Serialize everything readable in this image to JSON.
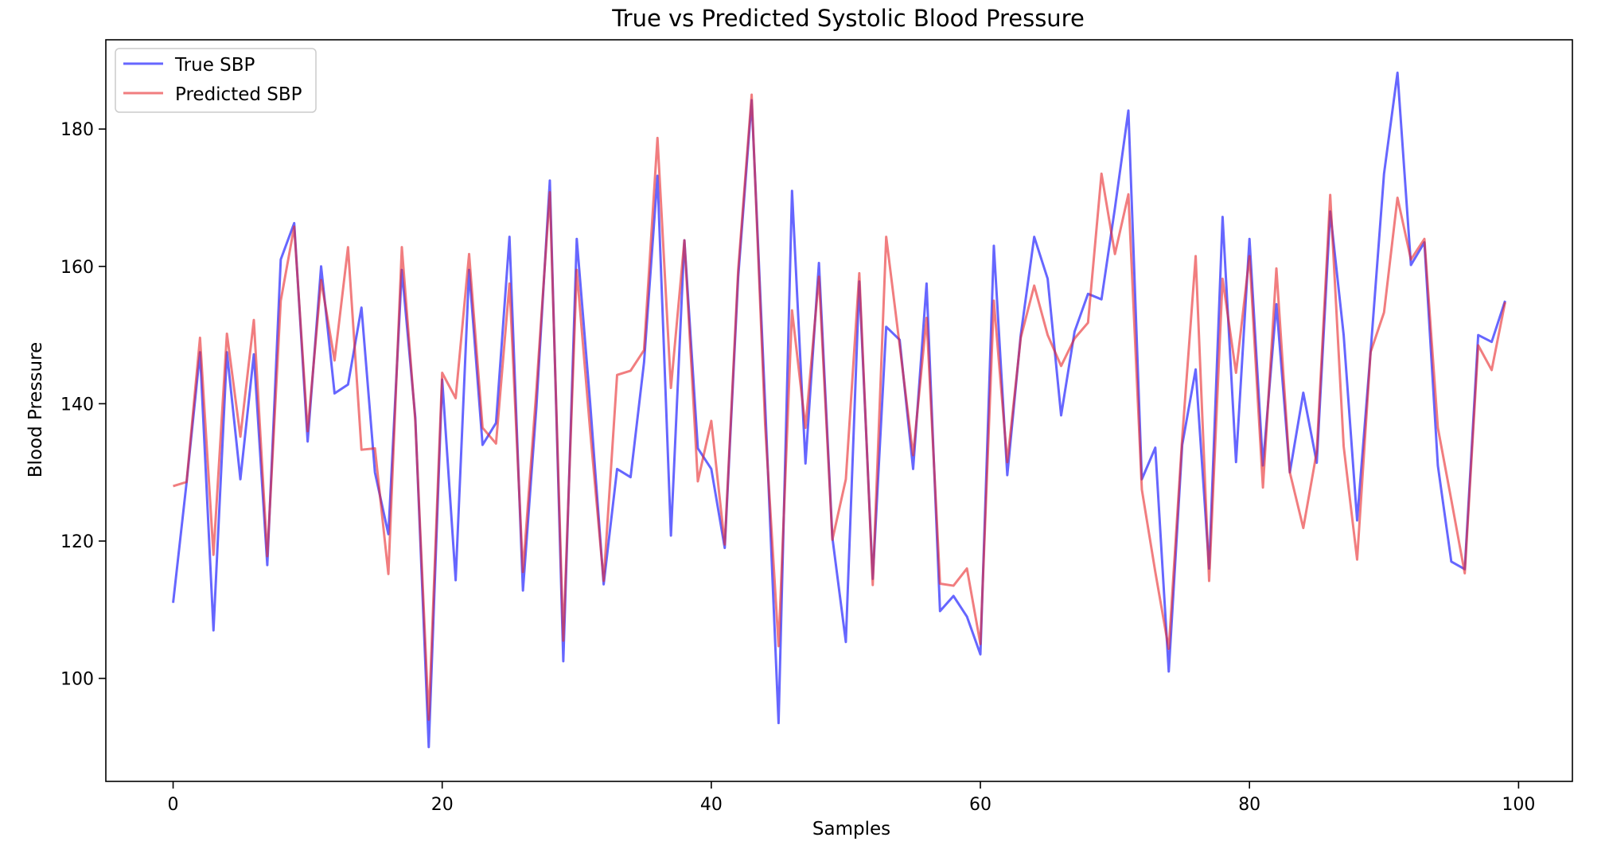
{
  "chart_data": {
    "type": "line",
    "title": "True vs Predicted Systolic Blood Pressure",
    "xlabel": "Samples",
    "ylabel": "Blood Pressure",
    "xlim": [
      -5,
      104
    ],
    "ylim": [
      85,
      193
    ],
    "xticks": [
      0,
      20,
      40,
      60,
      80,
      100
    ],
    "yticks": [
      100,
      120,
      140,
      160,
      180
    ],
    "grid": false,
    "legend_position": "upper-left",
    "x": [
      0,
      1,
      2,
      3,
      4,
      5,
      6,
      7,
      8,
      9,
      10,
      11,
      12,
      13,
      14,
      15,
      16,
      17,
      18,
      19,
      20,
      21,
      22,
      23,
      24,
      25,
      26,
      27,
      28,
      29,
      30,
      31,
      32,
      33,
      34,
      35,
      36,
      37,
      38,
      39,
      40,
      41,
      42,
      43,
      44,
      45,
      46,
      47,
      48,
      49,
      50,
      51,
      52,
      53,
      54,
      55,
      56,
      57,
      58,
      59,
      60,
      61,
      62,
      63,
      64,
      65,
      66,
      67,
      68,
      69,
      70,
      71,
      72,
      73,
      74,
      75,
      76,
      77,
      78,
      79,
      80,
      81,
      82,
      83,
      84,
      85,
      86,
      87,
      88,
      89,
      90,
      91,
      92,
      93,
      94,
      95,
      96,
      97,
      98,
      99
    ],
    "series": [
      {
        "name": "True SBP",
        "color": "#0000ff",
        "values": [
          111,
          128.5,
          147.5,
          107,
          147.5,
          129,
          147.2,
          116.5,
          161,
          166.3,
          134.5,
          160,
          141.5,
          142.8,
          154,
          130,
          121,
          159.5,
          138,
          90,
          143.5,
          114.3,
          159.5,
          134,
          137.2,
          164.3,
          112.8,
          139.5,
          172.5,
          102.5,
          164,
          140,
          113.7,
          130.5,
          129.3,
          146,
          173.2,
          120.8,
          163.8,
          133.5,
          130.5,
          119,
          158.5,
          184.2,
          140,
          93.5,
          171,
          131.3,
          160.5,
          120.5,
          105.3,
          157.8,
          114.5,
          151.2,
          149.3,
          130.5,
          157.5,
          109.8,
          112,
          109,
          103.5,
          163,
          129.6,
          150,
          164.3,
          158.2,
          138.3,
          150.5,
          156,
          155.2,
          168.5,
          182.7,
          129,
          133.6,
          101,
          134,
          145,
          116,
          167.2,
          131.5,
          164,
          131,
          154.5,
          130,
          141.6,
          131.4,
          168,
          150,
          123,
          147.5,
          173.5,
          188.2,
          160.2,
          163.5,
          131,
          117,
          115.9,
          150,
          149,
          155
        ]
      },
      {
        "name": "Predicted SBP",
        "color": "#e8262a",
        "values": [
          128,
          128.6,
          149.6,
          118,
          150.2,
          135.2,
          152.2,
          117.8,
          155,
          165.8,
          136,
          158,
          146.3,
          162.8,
          133.3,
          133.5,
          115.2,
          162.8,
          137.5,
          94,
          144.5,
          140.8,
          161.8,
          136.5,
          134.2,
          157.5,
          115.5,
          142,
          170.8,
          105.5,
          159.5,
          136,
          114.2,
          144.2,
          144.8,
          147.8,
          178.7,
          142.3,
          163.8,
          128.7,
          137.5,
          119.5,
          159.5,
          185,
          137,
          104.7,
          153.6,
          136.5,
          158.5,
          120.2,
          129,
          159,
          113.6,
          164.3,
          148.5,
          132.5,
          152.5,
          113.8,
          113.5,
          116,
          105,
          155,
          131.5,
          149.6,
          157.2,
          150,
          145.5,
          149.5,
          151.8,
          173.5,
          161.8,
          170.5,
          127.5,
          115.5,
          104.3,
          135,
          161.5,
          114.2,
          158.2,
          144.5,
          161.5,
          127.8,
          159.7,
          130,
          121.9,
          133,
          170.4,
          133.8,
          117.3,
          147.5,
          153.3,
          170,
          161,
          164,
          136.5,
          126,
          115.3,
          148.5,
          144.9,
          154.8
        ]
      }
    ]
  }
}
